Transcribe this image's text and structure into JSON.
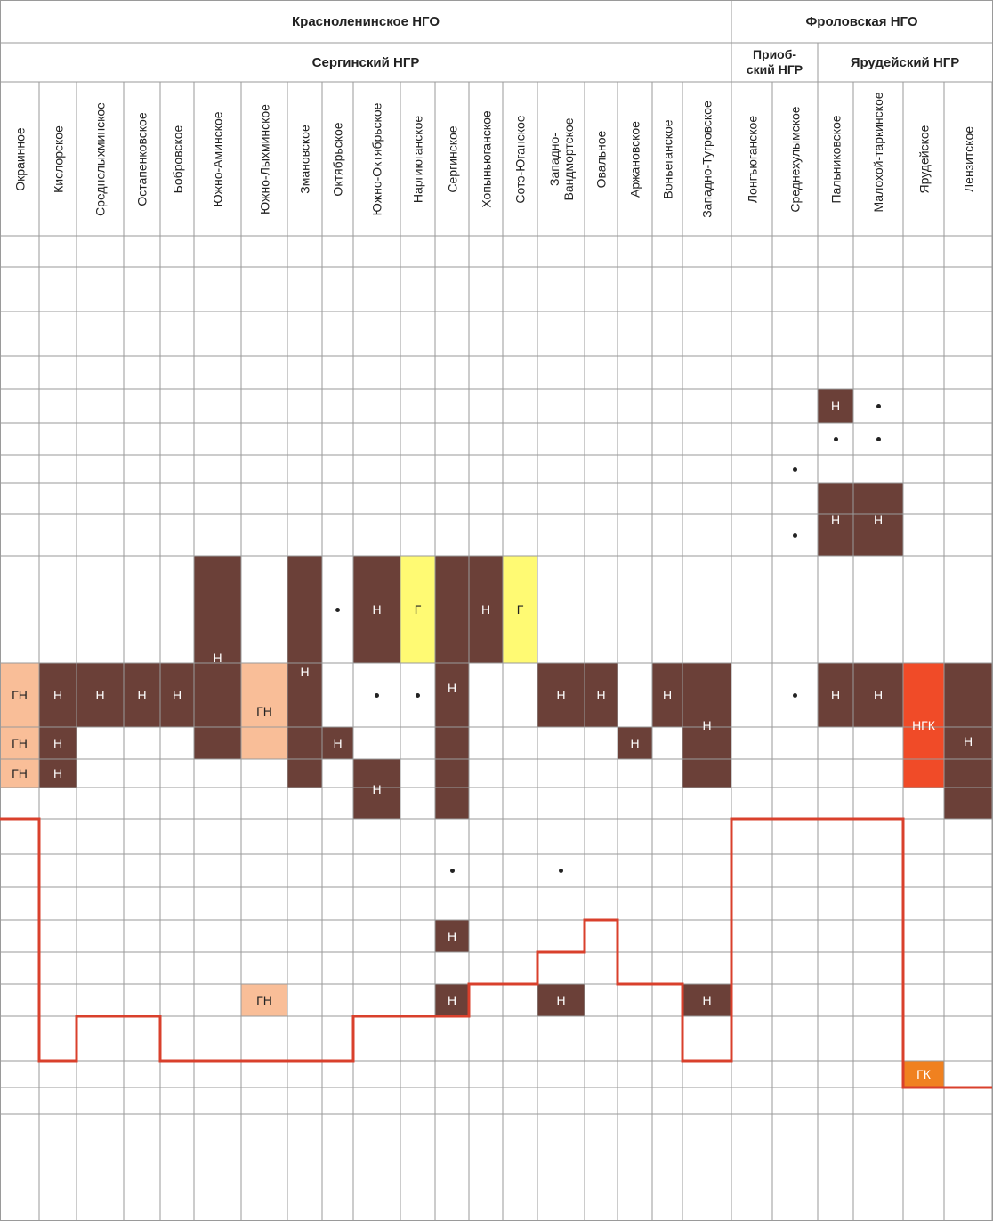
{
  "colors": {
    "oil": "#6b4038",
    "gas": "#fffa73",
    "gas_oil": "#f9be98",
    "oil_gas_condensate": "#f04b28",
    "gas_condensate": "#f08120",
    "boundary_line": "#d9402c",
    "grid": "#9a9a9a"
  },
  "header": {
    "regions": [
      {
        "label": "Красноленинское НГО"
      },
      {
        "label": "Фроловская НГО"
      }
    ],
    "subregions": [
      {
        "label": "Сергинский НГР"
      },
      {
        "label": "Приоб-ский НГР"
      },
      {
        "label": "Ярудейский НГР"
      }
    ]
  },
  "fields": [
    "Окраинное",
    "Кислорское",
    "Среднелыхминское",
    "Остапенковское",
    "Бобровское",
    "Южно-Аминское",
    "Южно-Лыхминское",
    "Змановское",
    "Октябрьское",
    "Южно-Октябрьское",
    "Наргиюганское",
    "Сергинское",
    "Хопыньюганское",
    "Сотэ-Юганское",
    "Западно-Вандмортское",
    "Овальное",
    "Аржановское",
    "Воньеганское",
    "Западно-Тугровское",
    "Лонгъюганское",
    "Среднехулымское",
    "Пальниковское",
    "Малохой-таркинское",
    "Ярудейское",
    "Лензитское"
  ],
  "deposits": [
    {
      "field": 0,
      "rows": [
        10,
        10
      ],
      "type": "gas_oil",
      "label": "ГН"
    },
    {
      "field": 0,
      "rows": [
        11,
        11
      ],
      "type": "gas_oil",
      "label": "ГН"
    },
    {
      "field": 0,
      "rows": [
        12,
        12
      ],
      "type": "gas_oil",
      "label": "ГН"
    },
    {
      "field": 1,
      "rows": [
        10,
        10
      ],
      "type": "oil",
      "label": "Н"
    },
    {
      "field": 1,
      "rows": [
        11,
        11
      ],
      "type": "oil",
      "label": "Н"
    },
    {
      "field": 1,
      "rows": [
        12,
        12
      ],
      "type": "oil",
      "label": "Н"
    },
    {
      "field": 2,
      "rows": [
        10,
        10
      ],
      "type": "oil",
      "label": "Н"
    },
    {
      "field": 3,
      "rows": [
        10,
        10
      ],
      "type": "oil",
      "label": "Н"
    },
    {
      "field": 4,
      "rows": [
        10,
        10
      ],
      "type": "oil",
      "label": "Н"
    },
    {
      "field": 5,
      "rows": [
        9,
        11
      ],
      "type": "oil",
      "label": "Н"
    },
    {
      "field": 6,
      "rows": [
        10,
        11
      ],
      "type": "gas_oil",
      "label": "ГН"
    },
    {
      "field": 6,
      "rows": [
        19,
        19
      ],
      "type": "gas_oil",
      "label": "ГН"
    },
    {
      "field": 7,
      "rows": [
        9,
        12
      ],
      "type": "oil",
      "label": "Н"
    },
    {
      "field": 8,
      "rows": [
        11,
        11
      ],
      "type": "oil",
      "label": "Н"
    },
    {
      "field": 9,
      "rows": [
        9,
        9
      ],
      "type": "oil",
      "label": "Н"
    },
    {
      "field": 9,
      "rows": [
        12,
        13
      ],
      "type": "oil",
      "label": "Н"
    },
    {
      "field": 10,
      "rows": [
        9,
        9
      ],
      "type": "gas",
      "label": "Г"
    },
    {
      "field": 11,
      "rows": [
        9,
        13
      ],
      "type": "oil",
      "label": "Н"
    },
    {
      "field": 11,
      "rows": [
        17,
        17
      ],
      "type": "oil",
      "label": "Н"
    },
    {
      "field": 11,
      "rows": [
        19,
        19
      ],
      "type": "oil",
      "label": "Н"
    },
    {
      "field": 12,
      "rows": [
        9,
        9
      ],
      "type": "oil",
      "label": "Н"
    },
    {
      "field": 13,
      "rows": [
        9,
        9
      ],
      "type": "gas",
      "label": "Г"
    },
    {
      "field": 14,
      "rows": [
        10,
        10
      ],
      "type": "oil",
      "label": "Н"
    },
    {
      "field": 14,
      "rows": [
        19,
        19
      ],
      "type": "oil",
      "label": "Н"
    },
    {
      "field": 15,
      "rows": [
        10,
        10
      ],
      "type": "oil",
      "label": "Н"
    },
    {
      "field": 16,
      "rows": [
        11,
        11
      ],
      "type": "oil",
      "label": "Н"
    },
    {
      "field": 17,
      "rows": [
        10,
        10
      ],
      "type": "oil",
      "label": "Н"
    },
    {
      "field": 18,
      "rows": [
        10,
        12
      ],
      "type": "oil",
      "label": "Н"
    },
    {
      "field": 18,
      "rows": [
        19,
        19
      ],
      "type": "oil",
      "label": "Н"
    },
    {
      "field": 21,
      "rows": [
        4,
        4
      ],
      "type": "oil",
      "label": "Н"
    },
    {
      "field": 21,
      "rows": [
        7,
        8
      ],
      "type": "oil",
      "label": "Н"
    },
    {
      "field": 22,
      "rows": [
        7,
        8
      ],
      "type": "oil",
      "label": "Н"
    },
    {
      "field": 21,
      "rows": [
        10,
        10
      ],
      "type": "oil",
      "label": "Н"
    },
    {
      "field": 22,
      "rows": [
        10,
        10
      ],
      "type": "oil",
      "label": "Н"
    },
    {
      "field": 23,
      "rows": [
        10,
        12
      ],
      "type": "oil_gas_condensate",
      "label": "НГК"
    },
    {
      "field": 23,
      "rows": [
        21,
        21
      ],
      "type": "gas_condensate",
      "label": "ГК"
    },
    {
      "field": 24,
      "rows": [
        10,
        13
      ],
      "type": "oil",
      "label": "Н"
    }
  ],
  "shows": [
    {
      "field": 8,
      "row": 9
    },
    {
      "field": 9,
      "row": 10
    },
    {
      "field": 10,
      "row": 10
    },
    {
      "field": 11,
      "row": 15
    },
    {
      "field": 14,
      "row": 15
    },
    {
      "field": 20,
      "row": 6
    },
    {
      "field": 20,
      "row": 8
    },
    {
      "field": 20,
      "row": 10
    },
    {
      "field": 22,
      "row": 4
    },
    {
      "field": 21,
      "row": 5
    },
    {
      "field": 22,
      "row": 5
    }
  ],
  "basement_row_by_field": [
    14,
    21,
    20,
    20,
    21,
    21,
    21,
    21,
    21,
    20,
    20,
    20,
    19,
    19,
    18,
    17,
    19,
    19,
    21,
    14,
    14,
    14,
    14,
    22,
    22
  ]
}
